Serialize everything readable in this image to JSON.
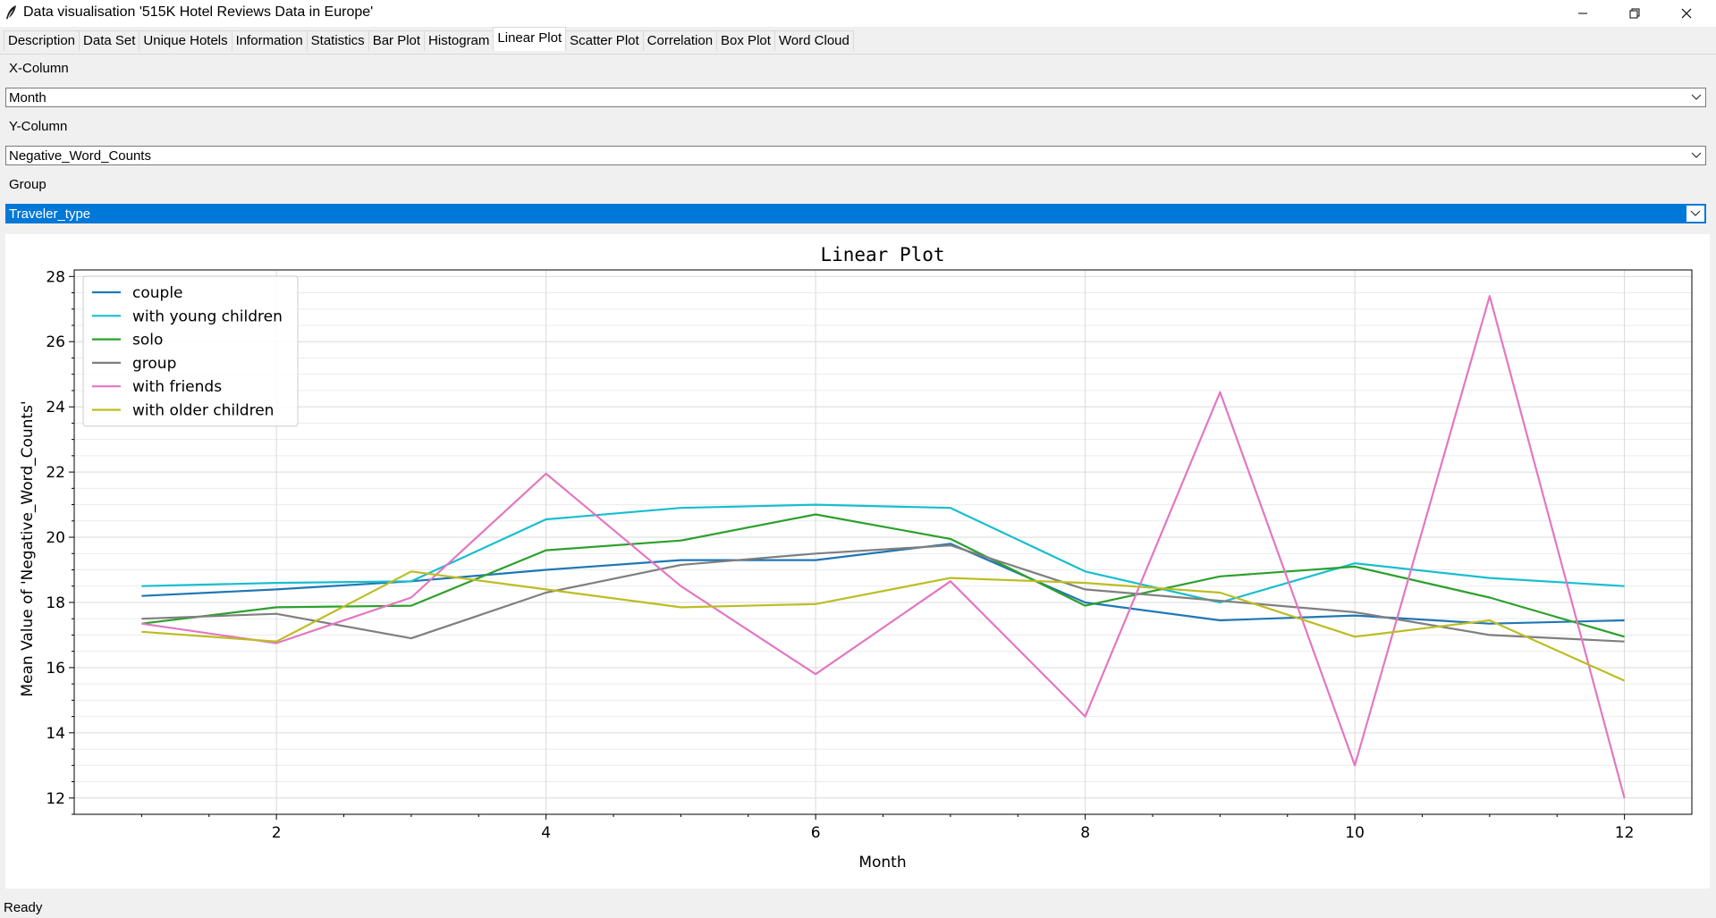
{
  "window": {
    "title": "Data visualisation '515K Hotel Reviews Data in Europe'",
    "icons": [
      "feather-icon",
      "minimize-icon",
      "restore-icon",
      "close-icon"
    ]
  },
  "tabs": [
    {
      "label": "Description"
    },
    {
      "label": "Data Set"
    },
    {
      "label": "Unique Hotels"
    },
    {
      "label": "Information"
    },
    {
      "label": "Statistics"
    },
    {
      "label": "Bar Plot"
    },
    {
      "label": "Histogram"
    },
    {
      "label": "Linear Plot",
      "active": true
    },
    {
      "label": "Scatter Plot"
    },
    {
      "label": "Correlation"
    },
    {
      "label": "Box Plot"
    },
    {
      "label": "Word Cloud"
    }
  ],
  "controls": {
    "x_label": "X-Column",
    "x_value": "Month",
    "y_label": "Y-Column",
    "y_value": "Negative_Word_Counts",
    "group_label": "Group",
    "group_value": "Traveler_type"
  },
  "status": {
    "text": "Ready"
  },
  "colors": {
    "selection": "#0078d7"
  },
  "chart_data": {
    "type": "line",
    "title": "Linear Plot",
    "xlabel": "Month",
    "ylabel": "Mean Value of 'Negative_Word_Counts'",
    "xlim": [
      0.5,
      12.5
    ],
    "ylim": [
      11.5,
      28.2
    ],
    "x_ticks": [
      2,
      4,
      6,
      8,
      10,
      12
    ],
    "y_ticks": [
      12,
      14,
      16,
      18,
      20,
      22,
      24,
      26,
      28
    ],
    "grid": true,
    "legend": "top-left",
    "x": [
      1,
      2,
      3,
      4,
      5,
      6,
      7,
      8,
      9,
      10,
      11,
      12
    ],
    "series": [
      {
        "name": "couple",
        "color": "#1f77b4",
        "values": [
          18.2,
          18.4,
          18.65,
          19.0,
          19.3,
          19.3,
          19.8,
          18.0,
          17.45,
          17.6,
          17.35,
          17.45
        ]
      },
      {
        "name": "with young children",
        "color": "#17becf",
        "values": [
          18.5,
          18.6,
          18.65,
          20.55,
          20.9,
          21.0,
          20.9,
          18.95,
          18.0,
          19.2,
          18.75,
          18.5
        ]
      },
      {
        "name": "solo",
        "color": "#2ca02c",
        "values": [
          17.35,
          17.85,
          17.9,
          19.6,
          19.9,
          20.7,
          19.95,
          17.9,
          18.8,
          19.1,
          18.15,
          16.95
        ]
      },
      {
        "name": "group",
        "color": "#7f7f7f",
        "values": [
          17.5,
          17.65,
          16.9,
          18.3,
          19.15,
          19.5,
          19.75,
          18.4,
          18.05,
          17.7,
          17.0,
          16.8
        ]
      },
      {
        "name": "with friends",
        "color": "#e377c2",
        "values": [
          17.35,
          16.75,
          18.15,
          21.95,
          18.5,
          15.8,
          18.65,
          14.5,
          24.45,
          13.0,
          27.4,
          12.0
        ]
      },
      {
        "name": "with older children",
        "color": "#bcbd22",
        "values": [
          17.1,
          16.8,
          18.95,
          18.4,
          17.85,
          17.95,
          18.75,
          18.6,
          18.3,
          16.95,
          17.45,
          15.6
        ]
      }
    ]
  }
}
